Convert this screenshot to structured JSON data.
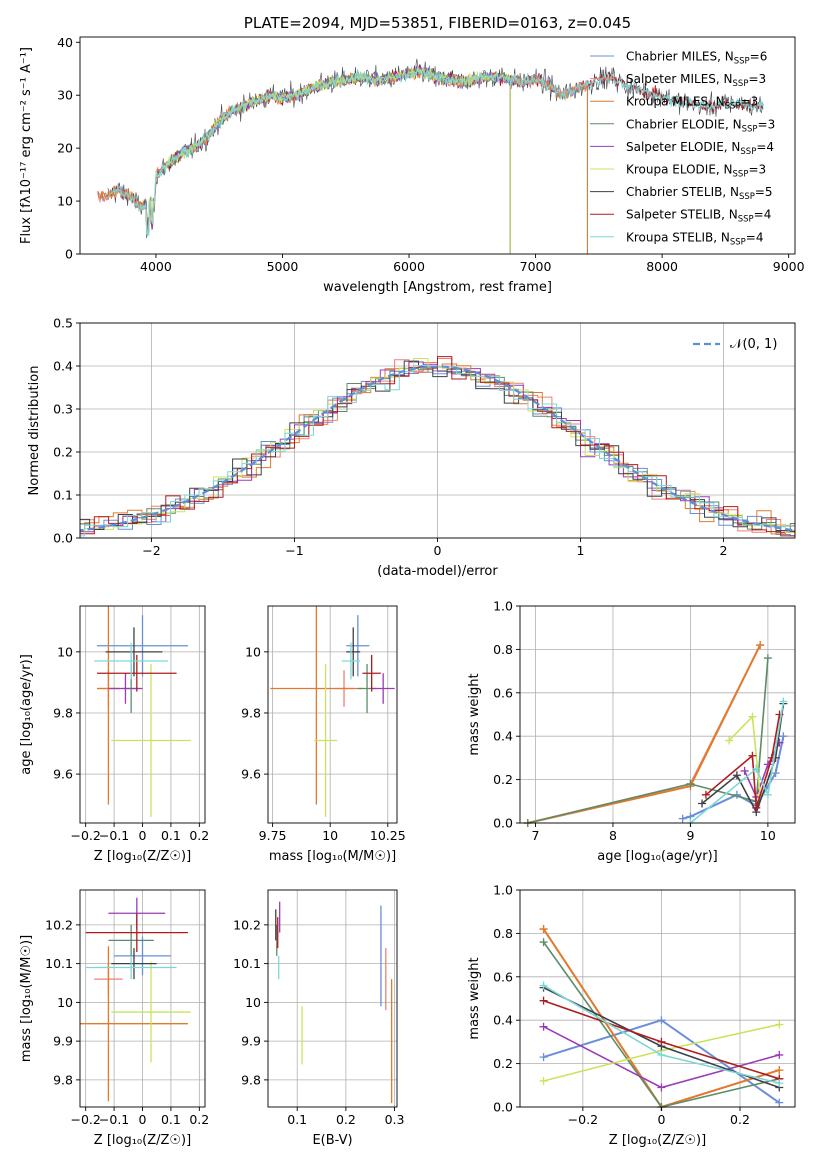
{
  "colors": {
    "Chabrier MILES": "#6a8fd8",
    "Salpeter MILES": "#f08070",
    "Kroupa MILES": "#e07a2c",
    "Chabrier ELODIE": "#5e8c68",
    "Salpeter ELODIE": "#9a3bb8",
    "Kroupa ELODIE": "#c9e45c",
    "Chabrier STELIB": "#3d4048",
    "Salpeter STELIB": "#b01c1c",
    "Kroupa STELIB": "#7fd6d6",
    "normal": "#5b8fd9"
  },
  "chart_data": [
    {
      "id": "spectrum",
      "type": "line",
      "title": "PLATE=2094, MJD=53851, FIBERID=0163, z=0.045",
      "xlabel": "wavelength [Angstrom, rest frame]",
      "ylabel": "Flux [fλ10⁻¹⁷ erg cm⁻² s⁻¹ A⁻¹]",
      "xlim": [
        3400,
        9050
      ],
      "ylim": [
        0,
        41
      ],
      "xticks": [
        4000,
        5000,
        6000,
        7000,
        8000,
        9000
      ],
      "yticks": [
        0,
        10,
        20,
        30,
        40
      ],
      "grid": false,
      "legend_position": "top-right",
      "legend": [
        {
          "label": "Chabrier MILES, N",
          "sub": "SSP",
          "tail": "=6",
          "key": "Chabrier MILES"
        },
        {
          "label": "Salpeter MILES, N",
          "sub": "SSP",
          "tail": "=3",
          "key": "Salpeter MILES"
        },
        {
          "label": "Kroupa MILES, N",
          "sub": "SSP",
          "tail": "=3",
          "key": "Kroupa MILES"
        },
        {
          "label": "Chabrier ELODIE, N",
          "sub": "SSP",
          "tail": "=3",
          "key": "Chabrier ELODIE"
        },
        {
          "label": "Salpeter ELODIE, N",
          "sub": "SSP",
          "tail": "=4",
          "key": "Salpeter ELODIE"
        },
        {
          "label": "Kroupa ELODIE, N",
          "sub": "SSP",
          "tail": "=3",
          "key": "Kroupa ELODIE"
        },
        {
          "label": "Chabrier STELIB, N",
          "sub": "SSP",
          "tail": "=5",
          "key": "Chabrier STELIB"
        },
        {
          "label": "Salpeter STELIB, N",
          "sub": "SSP",
          "tail": "=4",
          "key": "Salpeter STELIB"
        },
        {
          "label": "Kroupa STELIB, N",
          "sub": "SSP",
          "tail": "=4",
          "key": "Kroupa STELIB"
        }
      ],
      "continuum": {
        "x": [
          3620,
          3700,
          3800,
          3870,
          3900,
          3950,
          3990,
          4000,
          4050,
          4100,
          4200,
          4300,
          4400,
          4500,
          4600,
          4700,
          4800,
          4900,
          5000,
          5100,
          5200,
          5300,
          5400,
          5500,
          5600,
          5700,
          5800,
          5900,
          6000,
          6100,
          6200,
          6300,
          6400,
          6500,
          6600,
          6700,
          6800,
          6900,
          7000,
          7100,
          7200,
          7300,
          7400,
          7500,
          7600,
          7700,
          7800,
          7900,
          8000,
          8100,
          8200,
          8300,
          8400,
          8500,
          8600,
          8700,
          8800
        ],
        "y": [
          11,
          12,
          11,
          9,
          9,
          9.5,
          10,
          15,
          16,
          17,
          19,
          20,
          22,
          25,
          27,
          28,
          29,
          30,
          29.5,
          30,
          31,
          32,
          32.5,
          33,
          33.5,
          33,
          33,
          33.5,
          34,
          34.5,
          33.5,
          33,
          32.5,
          33,
          33.5,
          33.5,
          33,
          32.5,
          33,
          32,
          30,
          31,
          32,
          33,
          33.5,
          32,
          31,
          30.5,
          30,
          29,
          28.5,
          28,
          28,
          28.5,
          28.5,
          28,
          28
        ]
      },
      "model_ranges": {
        "MILES": [
          3540,
          7410
        ],
        "ELODIE": [
          3900,
          6800
        ],
        "STELIB": [
          3620,
          8800
        ]
      }
    },
    {
      "id": "residuals",
      "type": "histogram",
      "xlabel": "(data-model)/error",
      "ylabel": "Normed distribution",
      "xlim": [
        -2.5,
        2.5
      ],
      "ylim": [
        0,
        0.5
      ],
      "xticks": [
        -2,
        -1,
        0,
        1,
        2
      ],
      "yticks": [
        0.0,
        0.1,
        0.2,
        0.3,
        0.4,
        0.5
      ],
      "grid": true,
      "legend_position": "top-right",
      "legend_label": "𝒩(0, 1)",
      "bin_width": 0.1
    },
    {
      "id": "Z-age",
      "type": "errorbar",
      "xlabel": "Z [log₁₀(Z/Z☉)]",
      "ylabel": "age  [log₁₀(age/yr)]",
      "xlim": [
        -0.22,
        0.22
      ],
      "ylim": [
        9.44,
        10.15
      ],
      "xticks": [
        -0.2,
        -0.1,
        0.0,
        0.1,
        0.2
      ],
      "yticks": [
        9.6,
        9.8,
        10.0
      ],
      "grid": true,
      "points": [
        {
          "key": "Chabrier MILES",
          "x": 0.0,
          "xerr": 0.16,
          "y": 10.02,
          "yerr": 0.1
        },
        {
          "key": "Salpeter MILES",
          "x": -0.12,
          "xerr": 0.04,
          "y": 9.88,
          "yerr": 0.06
        },
        {
          "key": "Kroupa MILES",
          "x": -0.12,
          "xerr": 0.04,
          "y": 9.88,
          "yerr": 0.38
        },
        {
          "key": "Chabrier ELODIE",
          "x": -0.04,
          "xerr": 0.03,
          "y": 9.88,
          "yerr": 0.08
        },
        {
          "key": "Salpeter ELODIE",
          "x": -0.06,
          "xerr": 0.06,
          "y": 9.88,
          "yerr": 0.05
        },
        {
          "key": "Kroupa ELODIE",
          "x": 0.03,
          "xerr": 0.14,
          "y": 9.71,
          "yerr": 0.25
        },
        {
          "key": "Chabrier STELIB",
          "x": -0.03,
          "xerr": 0.1,
          "y": 10.0,
          "yerr": 0.08
        },
        {
          "key": "Salpeter STELIB",
          "x": -0.02,
          "xerr": 0.14,
          "y": 9.93,
          "yerr": 0.06
        },
        {
          "key": "Kroupa STELIB",
          "x": -0.04,
          "xerr": 0.13,
          "y": 9.97,
          "yerr": 0.06
        }
      ]
    },
    {
      "id": "mass-age",
      "type": "errorbar",
      "xlabel": "mass [log₁₀(M/M☉)]",
      "ylabel": "",
      "xlim": [
        9.73,
        10.29
      ],
      "ylim": [
        9.44,
        10.15
      ],
      "xticks": [
        9.75,
        10.0,
        10.25
      ],
      "yticks": [
        9.6,
        9.8,
        10.0
      ],
      "grid": true,
      "points": [
        {
          "key": "Chabrier MILES",
          "x": 10.12,
          "xerr": 0.05,
          "y": 10.02,
          "yerr": 0.1
        },
        {
          "key": "Salpeter MILES",
          "x": 10.06,
          "xerr": 0.04,
          "y": 9.88,
          "yerr": 0.06
        },
        {
          "key": "Kroupa MILES",
          "x": 9.94,
          "xerr": 0.2,
          "y": 9.88,
          "yerr": 0.38
        },
        {
          "key": "Chabrier ELODIE",
          "x": 10.16,
          "xerr": 0.04,
          "y": 9.88,
          "yerr": 0.08
        },
        {
          "key": "Salpeter ELODIE",
          "x": 10.23,
          "xerr": 0.05,
          "y": 9.88,
          "yerr": 0.05
        },
        {
          "key": "Kroupa ELODIE",
          "x": 9.98,
          "xerr": 0.05,
          "y": 9.71,
          "yerr": 0.25
        },
        {
          "key": "Chabrier STELIB",
          "x": 10.1,
          "xerr": 0.03,
          "y": 10.0,
          "yerr": 0.08
        },
        {
          "key": "Salpeter STELIB",
          "x": 10.18,
          "xerr": 0.04,
          "y": 9.93,
          "yerr": 0.06
        },
        {
          "key": "Kroupa STELIB",
          "x": 10.09,
          "xerr": 0.04,
          "y": 9.97,
          "yerr": 0.06
        }
      ]
    },
    {
      "id": "age-weight",
      "type": "line",
      "xlabel": "age  [log₁₀(age/yr)]",
      "ylabel": "mass weight",
      "xlim": [
        6.8,
        10.35
      ],
      "ylim": [
        0,
        1
      ],
      "xticks": [
        7,
        8,
        9,
        10
      ],
      "yticks": [
        0.0,
        0.2,
        0.4,
        0.6,
        0.8,
        1.0
      ],
      "grid": true,
      "series": [
        {
          "key": "Chabrier MILES",
          "x": [
            8.9,
            9.0,
            9.6,
            9.85,
            10.1,
            10.2
          ],
          "y": [
            0.02,
            0.03,
            0.13,
            0.08,
            0.23,
            0.4
          ]
        },
        {
          "key": "Salpeter MILES",
          "x": [
            6.9,
            9.0,
            9.9
          ],
          "y": [
            0.0,
            0.18,
            0.82
          ]
        },
        {
          "key": "Kroupa MILES",
          "x": [
            6.9,
            9.0,
            9.9
          ],
          "y": [
            0.0,
            0.17,
            0.82
          ]
        },
        {
          "key": "Chabrier ELODIE",
          "x": [
            6.9,
            9.0,
            9.85,
            10.0
          ],
          "y": [
            0.0,
            0.18,
            0.1,
            0.76
          ]
        },
        {
          "key": "Salpeter ELODIE",
          "x": [
            9.7,
            9.85,
            10.0,
            10.15
          ],
          "y": [
            0.24,
            0.12,
            0.27,
            0.37
          ]
        },
        {
          "key": "Kroupa ELODIE",
          "x": [
            9.5,
            9.8,
            9.9
          ],
          "y": [
            0.38,
            0.49,
            0.13
          ]
        },
        {
          "key": "Chabrier STELIB",
          "x": [
            9.15,
            9.6,
            9.85,
            10.1,
            10.2
          ],
          "y": [
            0.09,
            0.22,
            0.05,
            0.3,
            0.55
          ]
        },
        {
          "key": "Salpeter STELIB",
          "x": [
            9.2,
            9.8,
            9.85,
            10.05,
            10.15
          ],
          "y": [
            0.13,
            0.31,
            0.07,
            0.3,
            0.5
          ]
        },
        {
          "key": "Kroupa STELIB",
          "x": [
            9.0,
            9.85,
            10.0,
            10.2
          ],
          "y": [
            0.0,
            0.25,
            0.13,
            0.56
          ]
        }
      ]
    },
    {
      "id": "Z-mass",
      "type": "errorbar",
      "xlabel": "Z [log₁₀(Z/Z☉)]",
      "ylabel": "mass [log₁₀(M/M☉)]",
      "xlim": [
        -0.22,
        0.22
      ],
      "ylim": [
        9.73,
        10.29
      ],
      "xticks": [
        -0.2,
        -0.1,
        0.0,
        0.1,
        0.2
      ],
      "yticks": [
        9.8,
        9.9,
        10.0,
        10.1,
        10.2
      ],
      "grid": true,
      "points": [
        {
          "key": "Chabrier MILES",
          "x": 0.0,
          "xerr": 0.1,
          "y": 10.12,
          "yerr": 0.05
        },
        {
          "key": "Salpeter MILES",
          "x": -0.12,
          "xerr": 0.05,
          "y": 10.06,
          "yerr": 0.04
        },
        {
          "key": "Kroupa MILES",
          "x": -0.12,
          "xerr": 0.28,
          "y": 9.945,
          "yerr": 0.2
        },
        {
          "key": "Chabrier ELODIE",
          "x": -0.04,
          "xerr": 0.08,
          "y": 10.16,
          "yerr": 0.04
        },
        {
          "key": "Salpeter ELODIE",
          "x": -0.02,
          "xerr": 0.1,
          "y": 10.23,
          "yerr": 0.04
        },
        {
          "key": "Kroupa ELODIE",
          "x": 0.03,
          "xerr": 0.14,
          "y": 9.975,
          "yerr": 0.13
        },
        {
          "key": "Chabrier STELIB",
          "x": -0.03,
          "xerr": 0.08,
          "y": 10.1,
          "yerr": 0.04
        },
        {
          "key": "Salpeter STELIB",
          "x": -0.02,
          "xerr": 0.18,
          "y": 10.18,
          "yerr": 0.05
        },
        {
          "key": "Kroupa STELIB",
          "x": -0.04,
          "xerr": 0.16,
          "y": 10.09,
          "yerr": 0.03
        }
      ]
    },
    {
      "id": "EBV-mass",
      "type": "errorbar",
      "xlabel": "E(B-V)",
      "ylabel": "",
      "xlim": [
        0.04,
        0.305
      ],
      "ylim": [
        9.73,
        10.29
      ],
      "xticks": [
        0.1,
        0.2,
        0.3
      ],
      "yticks": [
        9.8,
        9.9,
        10.0,
        10.1,
        10.2
      ],
      "grid": true,
      "points": [
        {
          "key": "Chabrier MILES",
          "x": 0.272,
          "xerr": 0.0,
          "y": 10.12,
          "yerr": 0.13
        },
        {
          "key": "Salpeter MILES",
          "x": 0.282,
          "xerr": 0.0,
          "y": 10.06,
          "yerr": 0.08
        },
        {
          "key": "Kroupa MILES",
          "x": 0.294,
          "xerr": 0.0,
          "y": 9.9,
          "yerr": 0.16
        },
        {
          "key": "Chabrier ELODIE",
          "x": 0.058,
          "xerr": 0.0,
          "y": 10.16,
          "yerr": 0.04
        },
        {
          "key": "Salpeter ELODIE",
          "x": 0.064,
          "xerr": 0.0,
          "y": 10.22,
          "yerr": 0.04
        },
        {
          "key": "Kroupa ELODIE",
          "x": 0.11,
          "xerr": 0.0,
          "y": 9.915,
          "yerr": 0.075
        },
        {
          "key": "Chabrier STELIB",
          "x": 0.056,
          "xerr": 0.0,
          "y": 10.2,
          "yerr": 0.04
        },
        {
          "key": "Salpeter STELIB",
          "x": 0.06,
          "xerr": 0.0,
          "y": 10.18,
          "yerr": 0.04
        },
        {
          "key": "Kroupa STELIB",
          "x": 0.062,
          "xerr": 0.0,
          "y": 10.09,
          "yerr": 0.03
        }
      ]
    },
    {
      "id": "Z-weight",
      "type": "line",
      "xlabel": "Z [log₁₀(Z/Z☉)]",
      "ylabel": "mass weight",
      "xlim": [
        -0.36,
        0.34
      ],
      "ylim": [
        0,
        1
      ],
      "xticks": [
        -0.2,
        0.0,
        0.2
      ],
      "yticks": [
        0.0,
        0.2,
        0.4,
        0.6,
        0.8,
        1.0
      ],
      "grid": true,
      "series": [
        {
          "key": "Chabrier MILES",
          "x": [
            -0.3,
            0.0,
            0.3
          ],
          "y": [
            0.23,
            0.4,
            0.02
          ]
        },
        {
          "key": "Salpeter MILES",
          "x": [
            -0.3,
            0.0,
            0.3
          ],
          "y": [
            0.82,
            0.0,
            0.17
          ]
        },
        {
          "key": "Kroupa MILES",
          "x": [
            -0.3,
            0.0,
            0.3
          ],
          "y": [
            0.82,
            0.0,
            0.17
          ]
        },
        {
          "key": "Chabrier ELODIE",
          "x": [
            -0.3,
            0.0,
            0.3
          ],
          "y": [
            0.76,
            0.0,
            0.13
          ]
        },
        {
          "key": "Salpeter ELODIE",
          "x": [
            -0.3,
            0.0,
            0.3
          ],
          "y": [
            0.37,
            0.09,
            0.24
          ]
        },
        {
          "key": "Kroupa ELODIE",
          "x": [
            -0.3,
            0.0,
            0.3
          ],
          "y": [
            0.12,
            0.26,
            0.38
          ]
        },
        {
          "key": "Chabrier STELIB",
          "x": [
            -0.3,
            0.0,
            0.3
          ],
          "y": [
            0.55,
            0.28,
            0.09
          ]
        },
        {
          "key": "Salpeter STELIB",
          "x": [
            -0.3,
            0.0,
            0.3
          ],
          "y": [
            0.49,
            0.3,
            0.13
          ]
        },
        {
          "key": "Kroupa STELIB",
          "x": [
            -0.3,
            0.0,
            0.3
          ],
          "y": [
            0.56,
            0.24,
            0.11
          ]
        }
      ]
    }
  ]
}
